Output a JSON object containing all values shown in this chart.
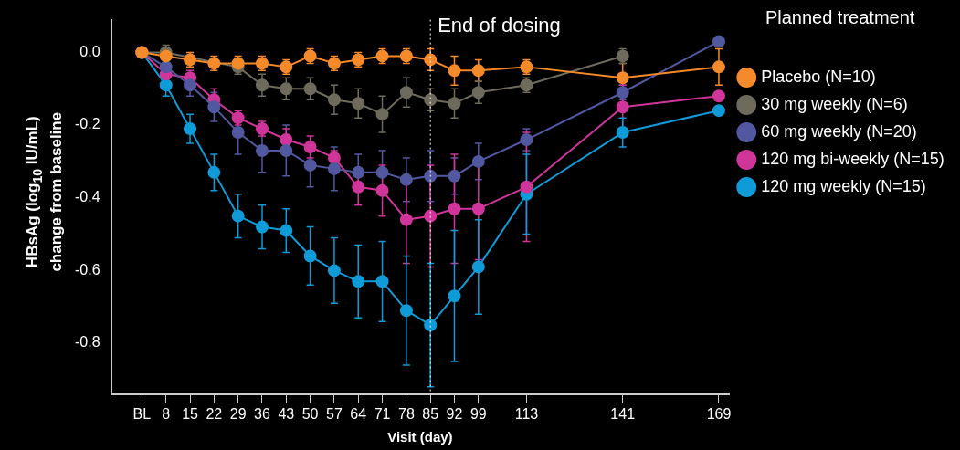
{
  "chart_data": {
    "type": "line",
    "xlabel": "Visit (day)",
    "ylabel": "HBsAg (log$_{10}$ IU/mL)\nchange from baseline",
    "legend_title": "Planned treatment",
    "legend": "right",
    "marker": "circle",
    "grid": false,
    "x": [
      1,
      8,
      15,
      22,
      29,
      36,
      43,
      50,
      57,
      64,
      71,
      78,
      85,
      92,
      99,
      113,
      141,
      169
    ],
    "xlim": [
      -8,
      172
    ],
    "xticks": [
      {
        "value": 1,
        "label": "BL"
      },
      8,
      15,
      22,
      29,
      36,
      43,
      50,
      57,
      64,
      71,
      78,
      85,
      92,
      99,
      113,
      141,
      169
    ],
    "ylim": [
      -0.94,
      0.09
    ],
    "yticks": [
      {
        "value": -0.8,
        "label": "-0.8"
      },
      {
        "value": -0.6,
        "label": "-0.6"
      },
      {
        "value": -0.4,
        "label": "-0.4"
      },
      {
        "value": -0.2,
        "label": "-0.2"
      },
      {
        "value": 0,
        "label": "0.0"
      }
    ],
    "ref_lines": [
      {
        "axis": "x",
        "value": 85,
        "label": "End of dosing",
        "color": "#ffffff",
        "line_style": "dotted"
      }
    ],
    "series": [
      {
        "name": "Placebo (N=10)",
        "color": "#f58a2a",
        "values": [
          0,
          -0.01,
          -0.02,
          -0.03,
          -0.03,
          -0.03,
          -0.04,
          -0.01,
          -0.03,
          -0.02,
          -0.01,
          -0.01,
          -0.02,
          -0.05,
          -0.05,
          -0.04,
          -0.07,
          -0.04
        ],
        "errors": [
          null,
          0.02,
          0.02,
          0.02,
          0.02,
          0.02,
          0.02,
          0.02,
          0.02,
          0.02,
          0.02,
          0.02,
          0.03,
          0.04,
          0.03,
          0.02,
          0.04,
          0.05
        ]
      },
      {
        "name": "30 mg weekly (N=6)",
        "color": "#6e6a5c",
        "values": [
          0,
          0,
          null,
          null,
          -0.04,
          -0.09,
          -0.1,
          -0.1,
          -0.13,
          -0.14,
          -0.17,
          -0.11,
          -0.13,
          -0.14,
          -0.11,
          -0.09,
          -0.01,
          null
        ],
        "errors": [
          null,
          0.02,
          null,
          null,
          0.02,
          0.03,
          0.03,
          0.03,
          0.04,
          0.04,
          0.05,
          0.04,
          0.03,
          0.04,
          0.03,
          0.02,
          0.02,
          null
        ]
      },
      {
        "name": "60 mg weekly (N=20)",
        "color": "#5158a0",
        "values": [
          0,
          -0.04,
          -0.09,
          -0.15,
          -0.22,
          -0.27,
          -0.27,
          -0.31,
          -0.32,
          -0.33,
          -0.33,
          -0.35,
          -0.34,
          -0.34,
          -0.3,
          -0.24,
          -0.11,
          0.03
        ],
        "errors": [
          null,
          0.02,
          0.03,
          0.04,
          0.06,
          0.06,
          0.07,
          0.06,
          0.06,
          0.05,
          0.06,
          0.06,
          0.07,
          0.05,
          0.05,
          0.03,
          0.02,
          null
        ]
      },
      {
        "name": "120 mg bi-weekly (N=15)",
        "color": "#d0359a",
        "values": [
          0,
          -0.06,
          -0.07,
          -0.13,
          -0.18,
          -0.21,
          -0.24,
          -0.26,
          -0.29,
          -0.37,
          -0.38,
          -0.46,
          -0.45,
          -0.43,
          -0.43,
          -0.37,
          -0.15,
          -0.12
        ],
        "errors": [
          null,
          0.02,
          0.02,
          0.03,
          0.02,
          0.02,
          0.03,
          0.03,
          0.02,
          0.05,
          0.07,
          0.12,
          0.14,
          0.15,
          0.14,
          0.15,
          0.06,
          null
        ]
      },
      {
        "name": "120 mg weekly (N=15)",
        "color": "#0f9ad8",
        "values": [
          0,
          -0.09,
          -0.21,
          -0.33,
          -0.45,
          -0.48,
          -0.49,
          -0.56,
          -0.6,
          -0.63,
          -0.63,
          -0.71,
          -0.75,
          -0.67,
          -0.59,
          -0.39,
          -0.22,
          -0.16
        ],
        "errors": [
          null,
          0.03,
          0.04,
          0.05,
          0.06,
          0.06,
          0.06,
          0.08,
          0.09,
          0.1,
          0.11,
          0.15,
          0.17,
          0.18,
          0.13,
          0.11,
          0.04,
          null
        ]
      }
    ]
  }
}
